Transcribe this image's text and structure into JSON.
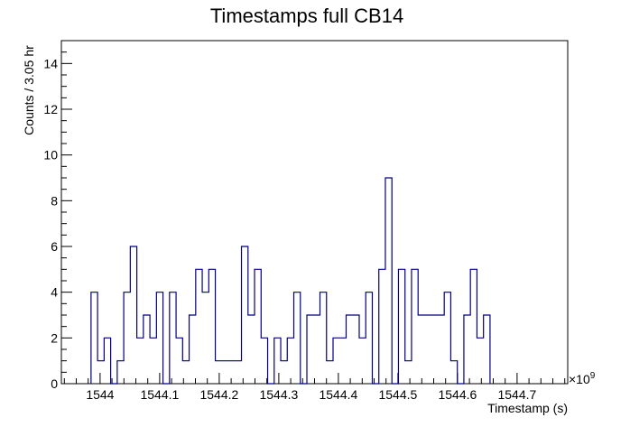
{
  "chart_data": {
    "type": "histogram",
    "title": "Timestamps full CB14",
    "xlabel": "Timestamp (s)",
    "ylabel": "Counts / 3.05 hr",
    "x_exponent_label": "×10",
    "x_exponent_power": "9",
    "xlim": [
      1543.935,
      1544.785
    ],
    "ylim": [
      0,
      15
    ],
    "xticks": [
      1544,
      1544.1,
      1544.2,
      1544.3,
      1544.4,
      1544.5,
      1544.6,
      1544.7
    ],
    "xtick_labels": [
      "1544",
      "1544.1",
      "1544.2",
      "1544.3",
      "1544.4",
      "1544.5",
      "1544.6",
      "1544.7"
    ],
    "yticks": [
      0,
      2,
      4,
      6,
      8,
      10,
      12,
      14
    ],
    "ytick_labels": [
      "0",
      "2",
      "4",
      "6",
      "8",
      "10",
      "12",
      "14"
    ],
    "bin_width": 0.01098,
    "bin_start": 1543.9848,
    "counts": [
      4,
      1,
      2,
      0,
      1,
      4,
      6,
      2,
      3,
      2,
      4,
      0,
      4,
      2,
      1,
      3,
      5,
      4,
      5,
      1,
      1,
      1,
      1,
      6,
      3,
      5,
      2,
      0,
      2,
      1,
      2,
      4,
      0,
      3,
      3,
      4,
      1,
      2,
      2,
      3,
      3,
      2,
      4,
      0,
      5,
      9,
      0,
      5,
      1,
      5,
      3,
      3,
      3,
      3,
      4,
      1,
      0,
      3,
      5,
      2,
      3
    ],
    "line_color": "#000080",
    "grid": false
  }
}
